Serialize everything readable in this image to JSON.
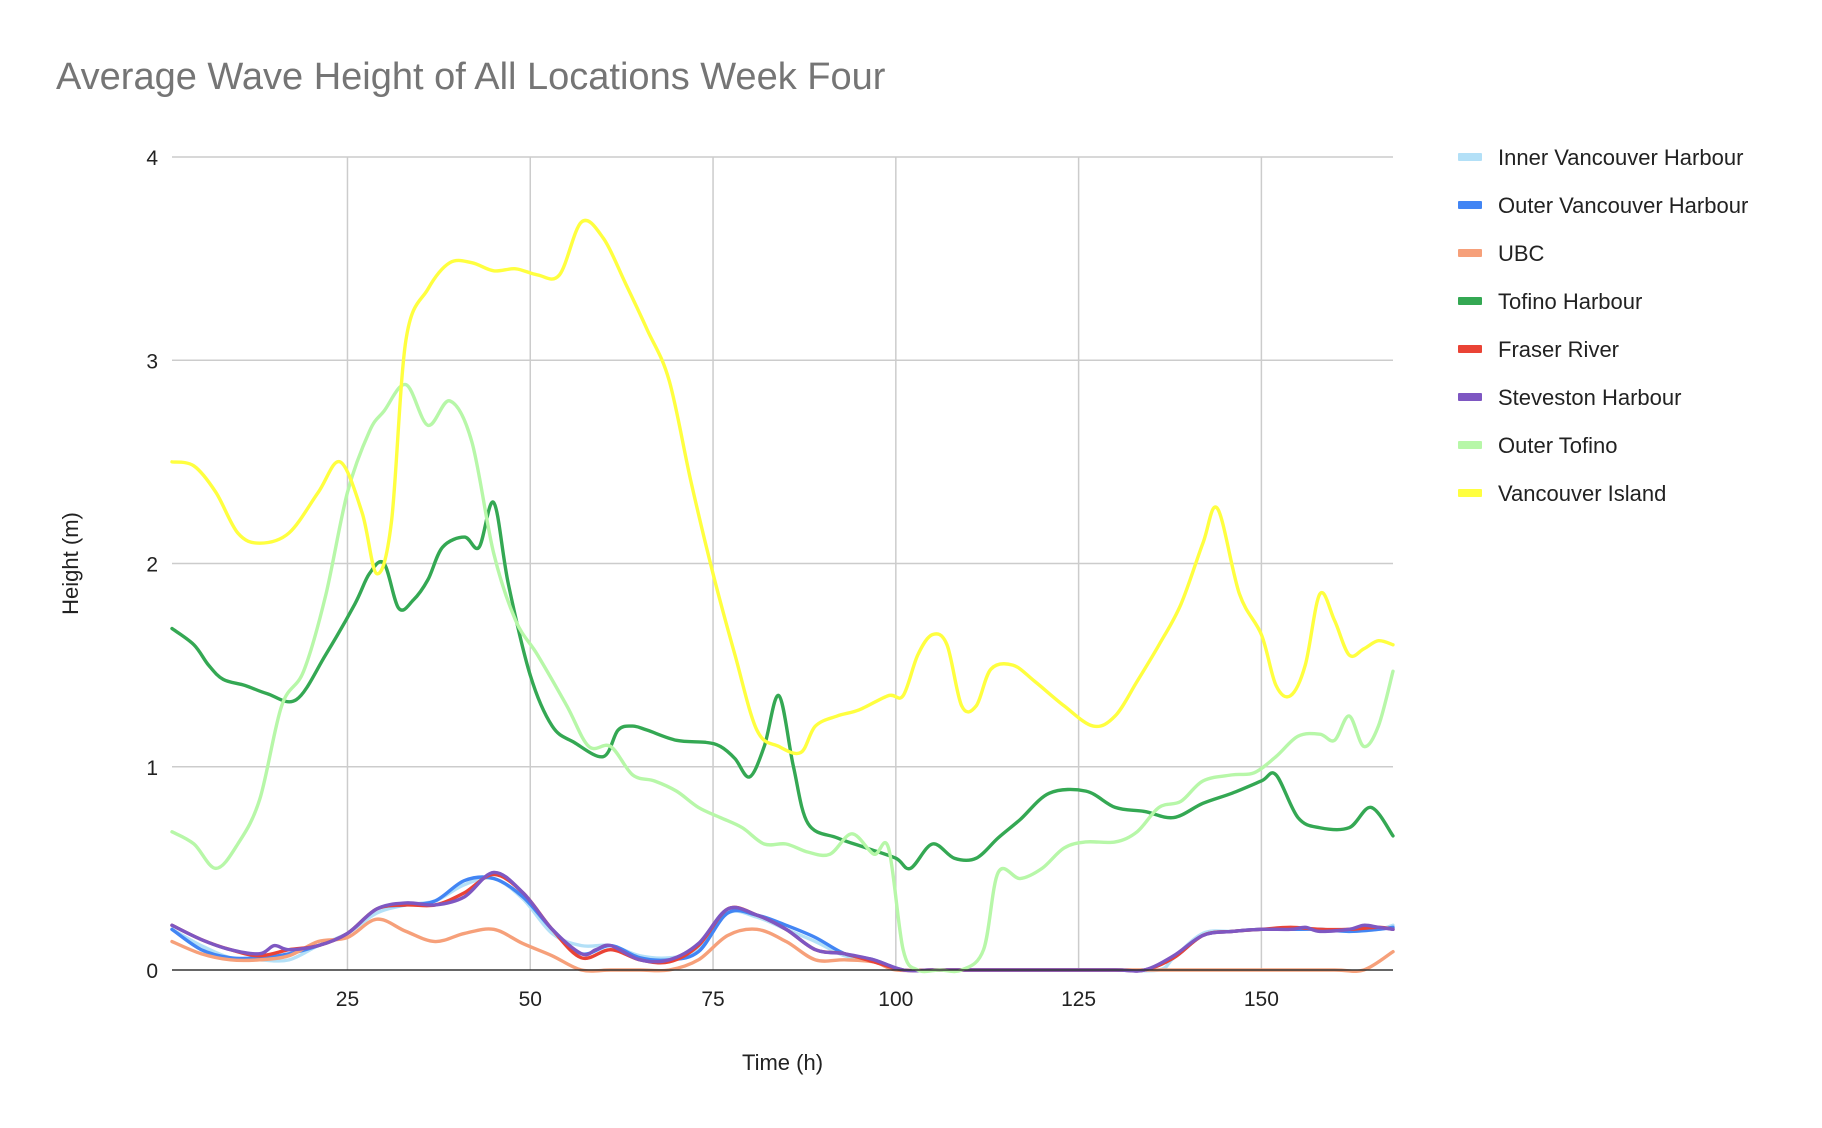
{
  "chart_data": {
    "type": "line",
    "title": "Average Wave Height of All Locations Week Four",
    "xlabel": "Time (h)",
    "ylabel": "Height (m)",
    "xlim": [
      1,
      168
    ],
    "ylim": [
      0,
      4
    ],
    "x_ticks": [
      25,
      50,
      75,
      100,
      125,
      150
    ],
    "y_ticks": [
      0,
      1,
      2,
      3,
      4
    ],
    "grid": true,
    "legend_position": "right",
    "series": [
      {
        "name": "Inner Vancouver Harbour",
        "color": "#b3e0f7",
        "x": [
          1,
          5,
          9,
          13,
          17,
          21,
          25,
          29,
          33,
          37,
          41,
          45,
          49,
          53,
          57,
          61,
          65,
          69,
          73,
          77,
          81,
          85,
          89,
          93,
          97,
          101,
          105,
          110,
          120,
          130,
          136,
          138,
          142,
          146,
          150,
          154,
          158,
          162,
          166,
          168
        ],
        "y": [
          0.2,
          0.12,
          0.06,
          0.05,
          0.05,
          0.12,
          0.18,
          0.28,
          0.32,
          0.34,
          0.42,
          0.45,
          0.35,
          0.18,
          0.12,
          0.12,
          0.07,
          0.06,
          0.1,
          0.28,
          0.26,
          0.2,
          0.14,
          0.07,
          0.04,
          0.0,
          0.0,
          0.0,
          0.0,
          0.0,
          0.0,
          0.06,
          0.18,
          0.19,
          0.2,
          0.2,
          0.2,
          0.19,
          0.2,
          0.22
        ]
      },
      {
        "name": "Outer Vancouver Harbour",
        "color": "#4285f4",
        "x": [
          1,
          5,
          9,
          13,
          17,
          21,
          25,
          29,
          33,
          37,
          41,
          45,
          49,
          53,
          57,
          61,
          65,
          69,
          73,
          77,
          81,
          85,
          89,
          93,
          97,
          101,
          105,
          110,
          120,
          130,
          134,
          138,
          142,
          146,
          150,
          154,
          158,
          162,
          166,
          168
        ],
        "y": [
          0.2,
          0.1,
          0.06,
          0.06,
          0.08,
          0.12,
          0.18,
          0.3,
          0.32,
          0.34,
          0.44,
          0.45,
          0.36,
          0.2,
          0.08,
          0.12,
          0.06,
          0.05,
          0.09,
          0.28,
          0.27,
          0.22,
          0.16,
          0.08,
          0.05,
          0.0,
          0.0,
          0.0,
          0.0,
          0.0,
          0.0,
          0.06,
          0.17,
          0.19,
          0.2,
          0.2,
          0.2,
          0.19,
          0.2,
          0.21
        ]
      },
      {
        "name": "UBC",
        "color": "#f6a07a",
        "x": [
          1,
          5,
          9,
          13,
          17,
          21,
          25,
          29,
          33,
          37,
          41,
          45,
          49,
          53,
          57,
          61,
          65,
          69,
          73,
          77,
          81,
          85,
          89,
          93,
          97,
          100,
          105,
          110,
          120,
          130,
          140,
          150,
          160,
          164,
          168
        ],
        "y": [
          0.14,
          0.08,
          0.05,
          0.05,
          0.07,
          0.14,
          0.16,
          0.25,
          0.19,
          0.14,
          0.18,
          0.2,
          0.13,
          0.07,
          0.0,
          0.0,
          0.0,
          0.0,
          0.05,
          0.17,
          0.2,
          0.14,
          0.05,
          0.05,
          0.04,
          0.0,
          0.0,
          0.0,
          0.0,
          0.0,
          0.0,
          0.0,
          0.0,
          0.0,
          0.09
        ]
      },
      {
        "name": "Tofino Harbour",
        "color": "#34a853",
        "x": [
          1,
          4,
          6,
          8,
          11,
          14,
          18,
          22,
          26,
          28,
          30,
          32,
          34,
          36,
          38,
          41,
          43,
          45,
          47,
          50,
          53,
          56,
          60,
          62,
          64,
          66,
          70,
          74,
          76,
          78,
          80,
          82,
          84,
          86,
          88,
          92,
          96,
          100,
          102,
          105,
          108,
          111,
          114,
          117,
          121,
          126,
          130,
          134,
          138,
          142,
          146,
          150,
          152,
          155,
          158,
          162,
          165,
          168
        ],
        "y": [
          1.68,
          1.6,
          1.5,
          1.43,
          1.4,
          1.36,
          1.33,
          1.55,
          1.8,
          1.95,
          2.0,
          1.78,
          1.82,
          1.92,
          2.08,
          2.13,
          2.08,
          2.3,
          1.9,
          1.45,
          1.2,
          1.12,
          1.05,
          1.18,
          1.2,
          1.18,
          1.13,
          1.12,
          1.1,
          1.04,
          0.95,
          1.1,
          1.35,
          1.0,
          0.72,
          0.65,
          0.6,
          0.55,
          0.5,
          0.62,
          0.55,
          0.55,
          0.65,
          0.74,
          0.87,
          0.88,
          0.8,
          0.78,
          0.75,
          0.82,
          0.87,
          0.93,
          0.96,
          0.75,
          0.7,
          0.7,
          0.8,
          0.66
        ]
      },
      {
        "name": "Fraser River",
        "color": "#ea4335",
        "x": [
          1,
          5,
          9,
          13,
          17,
          21,
          25,
          29,
          33,
          37,
          41,
          45,
          49,
          53,
          57,
          61,
          65,
          69,
          73,
          77,
          81,
          85,
          89,
          93,
          97,
          101,
          105,
          110,
          120,
          130,
          134,
          138,
          142,
          146,
          150,
          154,
          158,
          162,
          166,
          168
        ],
        "y": [
          0.22,
          0.15,
          0.1,
          0.07,
          0.1,
          0.12,
          0.18,
          0.3,
          0.32,
          0.32,
          0.38,
          0.47,
          0.38,
          0.2,
          0.06,
          0.1,
          0.05,
          0.04,
          0.12,
          0.3,
          0.27,
          0.2,
          0.1,
          0.08,
          0.04,
          0.0,
          0.0,
          0.0,
          0.0,
          0.0,
          0.0,
          0.06,
          0.17,
          0.19,
          0.2,
          0.21,
          0.2,
          0.2,
          0.21,
          0.2
        ]
      },
      {
        "name": "Steveston Harbour",
        "color": "#7e57c2",
        "x": [
          1,
          5,
          9,
          13,
          15,
          17,
          21,
          25,
          29,
          33,
          37,
          41,
          45,
          49,
          53,
          57,
          59,
          61,
          65,
          69,
          73,
          77,
          81,
          85,
          89,
          93,
          97,
          101,
          105,
          110,
          120,
          130,
          134,
          138,
          142,
          146,
          150,
          154,
          156,
          158,
          162,
          164,
          166,
          168
        ],
        "y": [
          0.22,
          0.15,
          0.1,
          0.08,
          0.12,
          0.1,
          0.12,
          0.18,
          0.3,
          0.33,
          0.32,
          0.36,
          0.48,
          0.38,
          0.2,
          0.08,
          0.1,
          0.12,
          0.05,
          0.05,
          0.13,
          0.3,
          0.27,
          0.2,
          0.1,
          0.08,
          0.05,
          0.0,
          0.0,
          0.0,
          0.0,
          0.0,
          0.0,
          0.07,
          0.17,
          0.19,
          0.2,
          0.2,
          0.21,
          0.19,
          0.2,
          0.22,
          0.21,
          0.2
        ]
      },
      {
        "name": "Outer Tofino",
        "color": "#b7f7a8",
        "x": [
          1,
          4,
          7,
          10,
          13,
          16,
          19,
          22,
          25,
          28,
          30,
          33,
          36,
          39,
          42,
          45,
          48,
          51,
          55,
          58,
          61,
          64,
          67,
          70,
          73,
          76,
          79,
          82,
          85,
          88,
          91,
          94,
          97,
          99,
          101,
          103,
          106,
          109,
          112,
          114,
          117,
          120,
          123,
          126,
          130,
          133,
          136,
          139,
          142,
          146,
          149,
          152,
          155,
          158,
          160,
          162,
          164,
          166,
          168
        ],
        "y": [
          0.68,
          0.62,
          0.5,
          0.62,
          0.84,
          1.3,
          1.47,
          1.84,
          2.35,
          2.65,
          2.75,
          2.88,
          2.68,
          2.8,
          2.6,
          2.05,
          1.72,
          1.55,
          1.3,
          1.1,
          1.1,
          0.96,
          0.93,
          0.88,
          0.8,
          0.75,
          0.7,
          0.62,
          0.62,
          0.58,
          0.57,
          0.67,
          0.57,
          0.6,
          0.1,
          0.0,
          0.0,
          0.0,
          0.1,
          0.48,
          0.45,
          0.5,
          0.6,
          0.63,
          0.63,
          0.68,
          0.8,
          0.83,
          0.93,
          0.96,
          0.97,
          1.05,
          1.15,
          1.16,
          1.13,
          1.25,
          1.1,
          1.2,
          1.47
        ]
      },
      {
        "name": "Vancouver Island",
        "color": "#ffff3f",
        "x": [
          1,
          4,
          7,
          10,
          13,
          17,
          21,
          24,
          27,
          29,
          31,
          33,
          36,
          39,
          42,
          45,
          48,
          51,
          54,
          57,
          60,
          63,
          66,
          69,
          72,
          75,
          78,
          81,
          84,
          87,
          89,
          92,
          95,
          99,
          101,
          103,
          105,
          107,
          109,
          111,
          113,
          116,
          119,
          123,
          127,
          130,
          133,
          136,
          139,
          142,
          144,
          147,
          150,
          152,
          154,
          156,
          158,
          160,
          162,
          164,
          166,
          168
        ],
        "y": [
          2.5,
          2.48,
          2.35,
          2.15,
          2.1,
          2.15,
          2.35,
          2.5,
          2.25,
          1.95,
          2.2,
          3.1,
          3.35,
          3.48,
          3.48,
          3.44,
          3.45,
          3.42,
          3.42,
          3.68,
          3.6,
          3.38,
          3.15,
          2.9,
          2.4,
          1.95,
          1.55,
          1.18,
          1.1,
          1.07,
          1.2,
          1.25,
          1.28,
          1.35,
          1.35,
          1.55,
          1.65,
          1.6,
          1.3,
          1.3,
          1.48,
          1.5,
          1.42,
          1.3,
          1.2,
          1.25,
          1.42,
          1.6,
          1.8,
          2.1,
          2.27,
          1.85,
          1.65,
          1.4,
          1.35,
          1.5,
          1.85,
          1.72,
          1.55,
          1.58,
          1.62,
          1.6
        ]
      }
    ]
  }
}
